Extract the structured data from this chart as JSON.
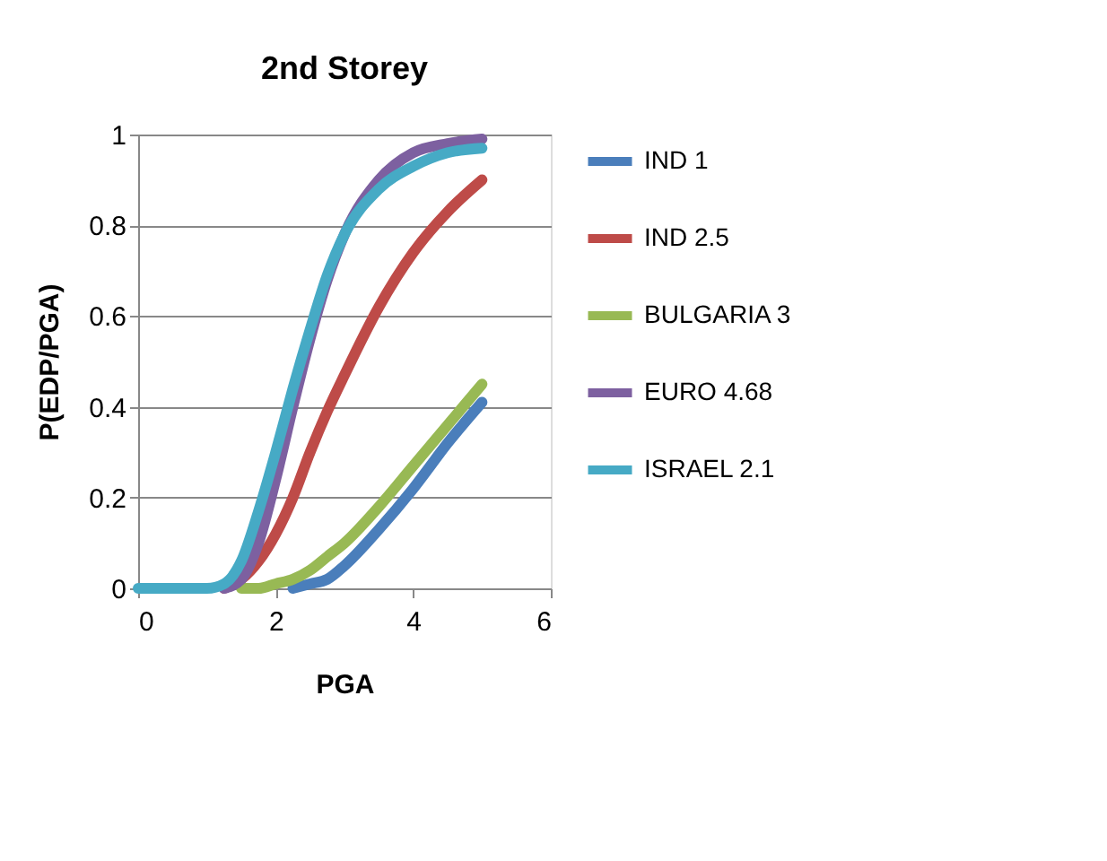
{
  "chart_data": {
    "type": "line",
    "title": "2nd Storey",
    "xlabel": "PGA",
    "ylabel": "P(EDP/PGA)",
    "x": [
      0,
      0.5,
      1,
      1.25,
      1.5,
      1.75,
      2,
      2.25,
      2.5,
      2.75,
      3,
      3.5,
      4,
      4.5,
      5
    ],
    "series": [
      {
        "name": "IND 1",
        "color": "#4a7ebb",
        "values": [
          null,
          null,
          null,
          null,
          null,
          null,
          null,
          0,
          0.01,
          0.02,
          0.05,
          0.13,
          0.22,
          0.32,
          0.41
        ]
      },
      {
        "name": "IND 2.5",
        "color": "#be4b48",
        "values": [
          null,
          null,
          null,
          0,
          0.02,
          0.06,
          0.12,
          0.2,
          0.3,
          0.39,
          0.47,
          0.62,
          0.74,
          0.83,
          0.9
        ]
      },
      {
        "name": "BULGARIA 3",
        "color": "#98b954",
        "values": [
          null,
          null,
          null,
          null,
          0,
          0,
          0.01,
          0.02,
          0.04,
          0.07,
          0.1,
          0.18,
          0.27,
          0.36,
          0.45
        ]
      },
      {
        "name": "EURO 4.68",
        "color": "#7d60a0",
        "values": [
          null,
          null,
          null,
          0,
          0.02,
          0.1,
          0.24,
          0.4,
          0.55,
          0.68,
          0.78,
          0.9,
          0.96,
          0.98,
          0.99
        ]
      },
      {
        "name": "ISRAEL 2.1",
        "color": "#46aac5",
        "values": [
          0,
          0,
          0,
          0.01,
          0.06,
          0.17,
          0.3,
          0.44,
          0.57,
          0.69,
          0.78,
          0.88,
          0.93,
          0.96,
          0.97
        ]
      }
    ],
    "xlim": [
      0,
      6
    ],
    "xticks": [
      0,
      2,
      4,
      6
    ],
    "ylim": [
      0,
      1
    ],
    "yticks": [
      {
        "value": 0,
        "label": "0"
      },
      0.2,
      0.4,
      0.6,
      0.8,
      {
        "value": 1,
        "label": "1"
      }
    ],
    "grid": "y",
    "legend": "right",
    "marker": "none",
    "line_style": "solid"
  }
}
